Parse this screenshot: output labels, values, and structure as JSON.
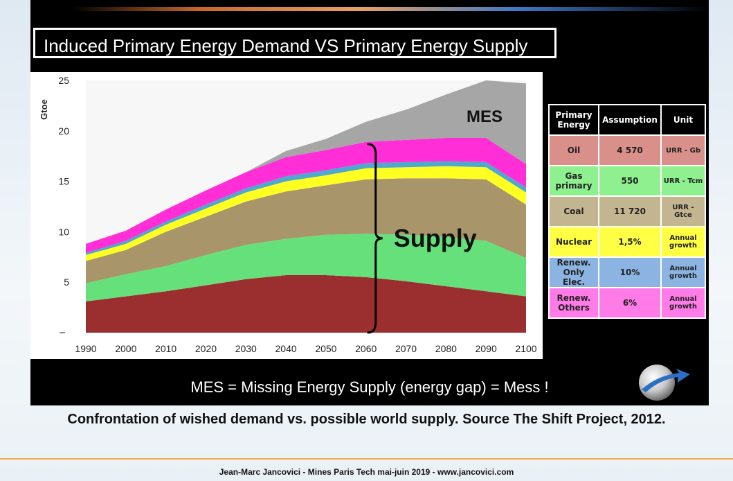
{
  "slide": {
    "title": "Induced Primary Energy Demand VS Primary Energy Supply",
    "footnote": "MES = Missing Energy Supply (energy gap) = Mess !",
    "caption": "Confrontation of wished demand vs. possible world supply. Source The Shift Project, 2012.",
    "credit": "Jean-Marc Jancovici - Mines Paris Tech mai-juin 2019 - www.jancovici.com"
  },
  "chart_data": {
    "type": "area",
    "stacked": true,
    "ylabel": "Gtoe",
    "ylim": [
      0,
      25
    ],
    "yticks": [
      "",
      "5",
      "10",
      "15",
      "20",
      "25"
    ],
    "xlim": [
      1990,
      2100
    ],
    "x": [
      1990,
      2000,
      2010,
      2020,
      2030,
      2040,
      2050,
      2060,
      2070,
      2080,
      2090,
      2100
    ],
    "grid": false,
    "legend": "none",
    "series": [
      {
        "name": "Oil",
        "color": "#9b2f2f",
        "values": [
          3.1,
          3.6,
          4.1,
          4.7,
          5.3,
          5.7,
          5.7,
          5.5,
          5.1,
          4.6,
          4.1,
          3.6
        ]
      },
      {
        "name": "Gas primary",
        "color": "#66e07a",
        "values": [
          1.8,
          2.2,
          2.5,
          3.0,
          3.4,
          3.6,
          4.0,
          4.3,
          4.6,
          4.9,
          5.0,
          3.8
        ]
      },
      {
        "name": "Coal",
        "color": "#a8966a",
        "values": [
          2.2,
          2.4,
          3.4,
          3.8,
          4.3,
          4.7,
          4.9,
          5.4,
          5.6,
          5.8,
          6.1,
          5.3
        ]
      },
      {
        "name": "Nuclear",
        "color": "#ffff22",
        "values": [
          0.6,
          0.6,
          0.7,
          0.8,
          0.9,
          1.0,
          1.0,
          1.1,
          1.1,
          1.2,
          1.2,
          1.2
        ]
      },
      {
        "name": "Renew. Only Elec.",
        "color": "#4fa8cf",
        "values": [
          0.2,
          0.3,
          0.3,
          0.4,
          0.4,
          0.5,
          0.5,
          0.5,
          0.5,
          0.5,
          0.5,
          0.5
        ]
      },
      {
        "name": "Renew. Others",
        "color": "#ff2ed6",
        "values": [
          0.9,
          1.0,
          1.2,
          1.4,
          1.6,
          1.9,
          2.0,
          2.1,
          2.2,
          2.3,
          2.4,
          2.3
        ]
      },
      {
        "name": "MES",
        "color": "#a6a6a6",
        "values": [
          0.0,
          0.0,
          0.0,
          0.0,
          0.0,
          0.6,
          1.1,
          2.0,
          3.0,
          4.3,
          5.7,
          8.0
        ]
      }
    ],
    "annotations": [
      "MES",
      "Supply"
    ]
  },
  "table": {
    "headers": [
      "Primary Energy",
      "Assumption",
      "Unit"
    ],
    "rows": [
      {
        "energy": "Oil",
        "assumption": "4 570",
        "unit": "URR - Gb",
        "color": "#d98f8a"
      },
      {
        "energy": "Gas primary",
        "assumption": "550",
        "unit": "URR - Tcm",
        "color": "#8ef08e"
      },
      {
        "energy": "Coal",
        "assumption": "11 720",
        "unit": "URR - Gtce",
        "color": "#c4b591"
      },
      {
        "energy": "Nuclear",
        "assumption": "1,5%",
        "unit": "Annual growth",
        "color": "#ffff44"
      },
      {
        "energy": "Renew. Only Elec.",
        "assumption": "10%",
        "unit": "Annual growth",
        "color": "#8cb4e2"
      },
      {
        "energy": "Renew. Others",
        "assumption": "6%",
        "unit": "Annual growth",
        "color": "#ff7be8"
      }
    ]
  }
}
